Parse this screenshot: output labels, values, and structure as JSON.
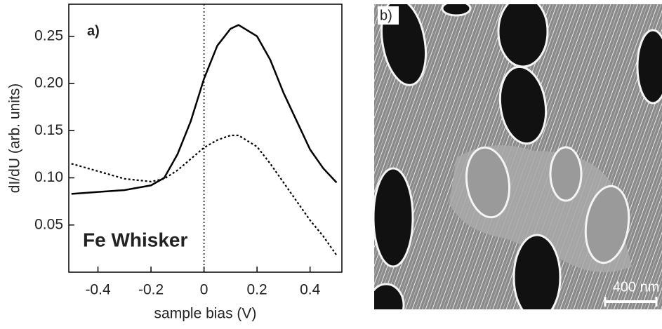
{
  "chart_data": {
    "type": "line",
    "panel_label": "a)",
    "annotation": "Fe Whisker",
    "xlabel": "sample bias (V)",
    "ylabel": "dI/dU (arb. units)",
    "x": [
      -0.5,
      -0.4,
      -0.3,
      -0.2,
      -0.15,
      -0.1,
      -0.05,
      0,
      0.05,
      0.1,
      0.13,
      0.2,
      0.25,
      0.3,
      0.35,
      0.4,
      0.45,
      0.5
    ],
    "series": [
      {
        "color": "#000000",
        "dash": "solid",
        "values": [
          0.083,
          0.085,
          0.087,
          0.092,
          0.1,
          0.125,
          0.16,
          0.205,
          0.24,
          0.258,
          0.262,
          0.25,
          0.225,
          0.19,
          0.16,
          0.13,
          0.11,
          0.095
        ]
      },
      {
        "color": "#000000",
        "dash": "dotted",
        "values": [
          0.115,
          0.107,
          0.099,
          0.096,
          0.099,
          0.108,
          0.12,
          0.132,
          0.14,
          0.145,
          0.145,
          0.133,
          0.115,
          0.095,
          0.075,
          0.055,
          0.038,
          0.018
        ]
      }
    ],
    "vline": 0,
    "xlim": [
      -0.51,
      0.52
    ],
    "ylim": [
      0,
      0.284
    ],
    "xticks": [
      -0.4,
      -0.2,
      0,
      0.2,
      0.4
    ],
    "yticks": [
      0.05,
      {
        "value": 0.1,
        "label": "0.10"
      },
      0.15,
      {
        "value": 0.2,
        "label": "0.20"
      },
      0.25
    ]
  },
  "image_panel": {
    "label": "b)",
    "scale_bar": "400 nm"
  }
}
